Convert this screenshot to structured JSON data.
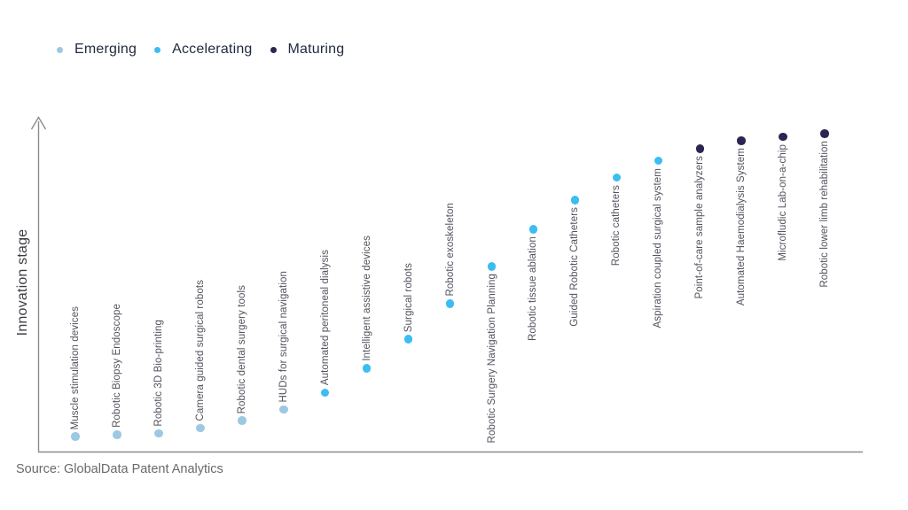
{
  "source": "Source: GlobalData Patent Analytics",
  "chart_data": {
    "type": "scatter",
    "title": "",
    "xlabel": "",
    "ylabel": "Innovation stage",
    "legend_position": "top-left",
    "grid": false,
    "y_axis": {
      "has_arrow": true,
      "tick_labels": [],
      "ylim": [
        0,
        105
      ]
    },
    "stage_categories": [
      {
        "label": "Emerging",
        "color": "#9CC8E2"
      },
      {
        "label": "Accelerating",
        "color": "#3CBDF2"
      },
      {
        "label": "Maturing",
        "color": "#2D2452"
      }
    ],
    "points": [
      {
        "label": "Muscle stimulation devices",
        "category": "Emerging",
        "stage": 5
      },
      {
        "label": "Robotic Biopsy Endoscope",
        "category": "Emerging",
        "stage": 5.5
      },
      {
        "label": "Robotic 3D Bio-printing",
        "category": "Emerging",
        "stage": 6
      },
      {
        "label": "Camera guided surgical robots",
        "category": "Emerging",
        "stage": 7.7
      },
      {
        "label": "Robotic dental surgery tools",
        "category": "Emerging",
        "stage": 10
      },
      {
        "label": "HUDs for surgical navigation",
        "category": "Emerging",
        "stage": 13.5
      },
      {
        "label": "Automated peritoneal dialysis",
        "category": "Accelerating",
        "stage": 18.8
      },
      {
        "label": "Intelligent assistive devices",
        "category": "Accelerating",
        "stage": 26.4
      },
      {
        "label": "Surgical robots",
        "category": "Accelerating",
        "stage": 35.5
      },
      {
        "label": "Robotic exoskeleton",
        "category": "Accelerating",
        "stage": 46.7
      },
      {
        "label": "Robotic Surgery Navigation Planning",
        "category": "Accelerating",
        "stage": 58.3
      },
      {
        "label": "Robotic tissue ablation",
        "category": "Accelerating",
        "stage": 70
      },
      {
        "label": "Guided Robotic Catheters",
        "category": "Accelerating",
        "stage": 79.2
      },
      {
        "label": "Robotic catheters",
        "category": "Accelerating",
        "stage": 86.2
      },
      {
        "label": "Aspiration coupled surgical system",
        "category": "Accelerating",
        "stage": 91.5
      },
      {
        "label": "Point-of-care sample analyzers",
        "category": "Maturing",
        "stage": 95.3
      },
      {
        "label": "Automated Haemodialysis System",
        "category": "Maturing",
        "stage": 97.8
      },
      {
        "label": "Microfludic Lab-on-a-chip",
        "category": "Maturing",
        "stage": 99
      },
      {
        "label": "Robotic lower limb rehabilitation",
        "category": "Maturing",
        "stage": 100
      }
    ]
  }
}
